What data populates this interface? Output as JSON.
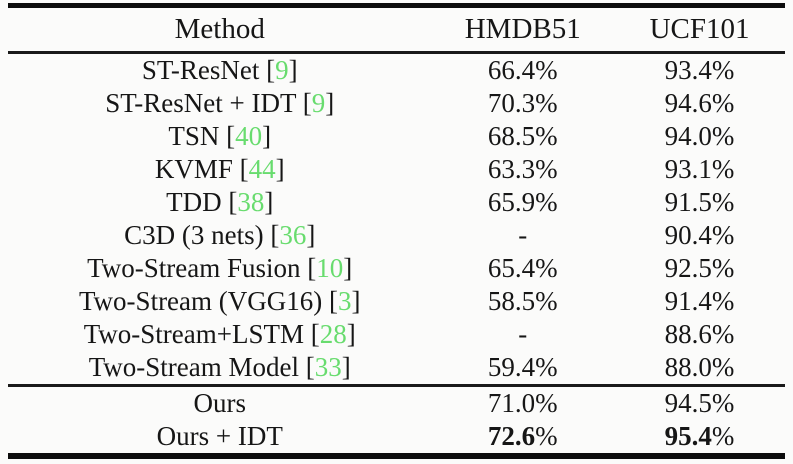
{
  "table": {
    "citation_color": "#68dc6e",
    "headers": [
      "Method",
      "HMDB51",
      "UCF101"
    ],
    "rows": [
      {
        "method": "ST-ResNet",
        "citation": "9",
        "hmdb51": "66.4%",
        "ucf101": "93.4%"
      },
      {
        "method": "ST-ResNet + IDT",
        "citation": "9",
        "hmdb51": "70.3%",
        "ucf101": "94.6%"
      },
      {
        "method": "TSN",
        "citation": "40",
        "hmdb51": "68.5%",
        "ucf101": "94.0%"
      },
      {
        "method": "KVMF",
        "citation": "44",
        "hmdb51": "63.3%",
        "ucf101": "93.1%"
      },
      {
        "method": "TDD",
        "citation": "38",
        "hmdb51": "65.9%",
        "ucf101": "91.5%"
      },
      {
        "method": "C3D (3 nets)",
        "citation": "36",
        "hmdb51": "-",
        "ucf101": "90.4%"
      },
      {
        "method": "Two-Stream Fusion",
        "citation": "10",
        "hmdb51": "65.4%",
        "ucf101": "92.5%"
      },
      {
        "method": "Two-Stream (VGG16)",
        "citation": "3",
        "hmdb51": "58.5%",
        "ucf101": "91.4%"
      },
      {
        "method": "Two-Stream+LSTM",
        "citation": "28",
        "hmdb51": "-",
        "ucf101": "88.6%"
      },
      {
        "method": "Two-Stream Model",
        "citation": "33",
        "hmdb51": "59.4%",
        "ucf101": "88.0%"
      },
      {
        "method": "Ours",
        "citation": null,
        "hmdb51": "71.0%",
        "ucf101": "94.5%",
        "separator_before": true
      },
      {
        "method": "Ours + IDT",
        "citation": null,
        "hmdb51": "72.6%",
        "ucf101": "95.4%",
        "bold_values": true
      }
    ]
  }
}
